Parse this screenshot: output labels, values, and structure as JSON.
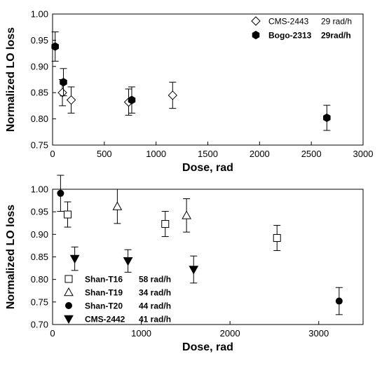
{
  "chart_data": [
    {
      "type": "scatter",
      "xlabel": "Dose,  rad",
      "ylabel": "Normalized  LO loss",
      "xlim": [
        0,
        3000
      ],
      "ylim": [
        0.75,
        1.0
      ],
      "xticks": [
        0,
        500,
        1000,
        1500,
        2000,
        2500,
        3000
      ],
      "yticks": [
        0.75,
        0.8,
        0.85,
        0.9,
        0.95,
        1.0
      ],
      "x_tick_labels": [
        "0",
        "500",
        "1000",
        "1500",
        "2000",
        "2500",
        "3000"
      ],
      "y_tick_labels": [
        "0.75",
        "0.80",
        "0.85",
        "0.90",
        "0.95",
        "1.00"
      ],
      "grid": false,
      "legend_position": "top-right",
      "series": [
        {
          "name": "CMS-2443",
          "rate": "29 rad/h",
          "marker": "diamond-open",
          "label_bold": false,
          "points": [
            {
              "x": 95,
              "y": 0.85,
              "err": 0.025
            },
            {
              "x": 180,
              "y": 0.836,
              "err": 0.025
            },
            {
              "x": 735,
              "y": 0.832,
              "err": 0.025
            },
            {
              "x": 1160,
              "y": 0.845,
              "err": 0.025
            }
          ]
        },
        {
          "name": "Bogo-2313",
          "rate": "29rad/h",
          "marker": "hexagon-filled",
          "label_bold": true,
          "points": [
            {
              "x": 25,
              "y": 0.938,
              "err": 0.028
            },
            {
              "x": 105,
              "y": 0.87,
              "err": 0.026
            },
            {
              "x": 765,
              "y": 0.836,
              "err": 0.025
            },
            {
              "x": 2650,
              "y": 0.802,
              "err": 0.024
            }
          ]
        }
      ]
    },
    {
      "type": "scatter",
      "xlabel": "Dose,  rad",
      "ylabel": "Normalized  LO loss",
      "xlim": [
        0,
        3500
      ],
      "ylim": [
        0.7,
        1.0
      ],
      "xticks": [
        0,
        1000,
        2000,
        3000
      ],
      "yticks": [
        0.7,
        0.75,
        0.8,
        0.85,
        0.9,
        0.95,
        1.0
      ],
      "x_tick_labels": [
        "0",
        "1000",
        "2000",
        "3000"
      ],
      "y_tick_labels": [
        "0.70",
        "0.75",
        "0.80",
        "0.85",
        "0.90",
        "0.95",
        "1.00"
      ],
      "grid": false,
      "legend_position": "bottom-left",
      "series": [
        {
          "name": "Shan-T16",
          "rate": "58 rad/h",
          "marker": "square-open",
          "points": [
            {
              "x": 170,
              "y": 0.944,
              "err": 0.028
            },
            {
              "x": 1270,
              "y": 0.923,
              "err": 0.028
            },
            {
              "x": 2530,
              "y": 0.892,
              "err": 0.028
            }
          ]
        },
        {
          "name": "Shan-T19",
          "rate": "34 rad/h",
          "marker": "triangle-up-open",
          "points": [
            {
              "x": 730,
              "y": 0.962,
              "err": 0.038
            },
            {
              "x": 1510,
              "y": 0.942,
              "err": 0.037
            }
          ]
        },
        {
          "name": "Shan-T20",
          "rate": "44 rad/h",
          "marker": "circle-filled",
          "points": [
            {
              "x": 90,
              "y": 0.991,
              "err": 0.04
            },
            {
              "x": 3230,
              "y": 0.752,
              "err": 0.03
            }
          ]
        },
        {
          "name": "CMS-2442",
          "rate": "41 rad/h",
          "marker": "triangle-down-filled",
          "points": [
            {
              "x": 250,
              "y": 0.846,
              "err": 0.026
            },
            {
              "x": 850,
              "y": 0.841,
              "err": 0.025
            },
            {
              "x": 1590,
              "y": 0.822,
              "err": 0.03
            }
          ]
        }
      ]
    }
  ]
}
